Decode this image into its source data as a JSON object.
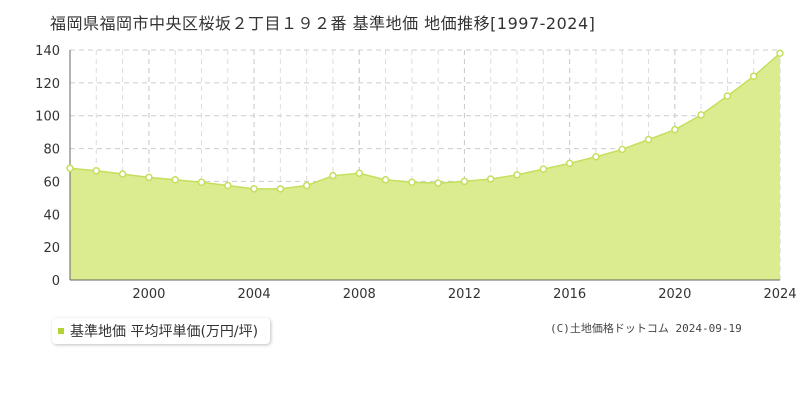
{
  "title": "福岡県福岡市中央区桜坂２丁目１９２番 基準地価 地価推移[1997-2024]",
  "legend_label": "基準地価 平均坪単価(万円/坪)",
  "copyright": "(C)土地価格ドットコム 2024-09-19",
  "colors": {
    "fill": "#dbeb8f",
    "line": "#c4df5c",
    "marker_stroke": "#c4df5c",
    "marker_fill": "#ffffff",
    "legend_marker": "#b5d334",
    "grid": "#cccccc",
    "axis": "#666666"
  },
  "chart_data": {
    "type": "area",
    "title": "福岡県福岡市中央区桜坂２丁目１９２番 基準地価 地価推移[1997-2024]",
    "xlabel": "",
    "ylabel": "",
    "xlim": [
      1997,
      2024
    ],
    "ylim": [
      0,
      140
    ],
    "x_ticks": [
      2000,
      2004,
      2008,
      2012,
      2016,
      2020,
      2024
    ],
    "y_ticks": [
      0,
      20,
      40,
      60,
      80,
      100,
      120,
      140
    ],
    "grid": true,
    "legend_position": "bottom-left",
    "series": [
      {
        "name": "基準地価 平均坪単価(万円/坪)",
        "x": [
          1997,
          1998,
          1999,
          2000,
          2001,
          2002,
          2003,
          2004,
          2005,
          2006,
          2007,
          2008,
          2009,
          2010,
          2011,
          2012,
          2013,
          2014,
          2015,
          2016,
          2017,
          2018,
          2019,
          2020,
          2021,
          2022,
          2023,
          2024
        ],
        "values": [
          68,
          66.5,
          64.5,
          62.5,
          61,
          59.5,
          57.5,
          55.5,
          55.5,
          57.5,
          63.5,
          65,
          61,
          59.5,
          59,
          60,
          61.5,
          64,
          67.5,
          71,
          75,
          79.5,
          85.5,
          91.5,
          100.5,
          112,
          124,
          138
        ]
      }
    ]
  }
}
